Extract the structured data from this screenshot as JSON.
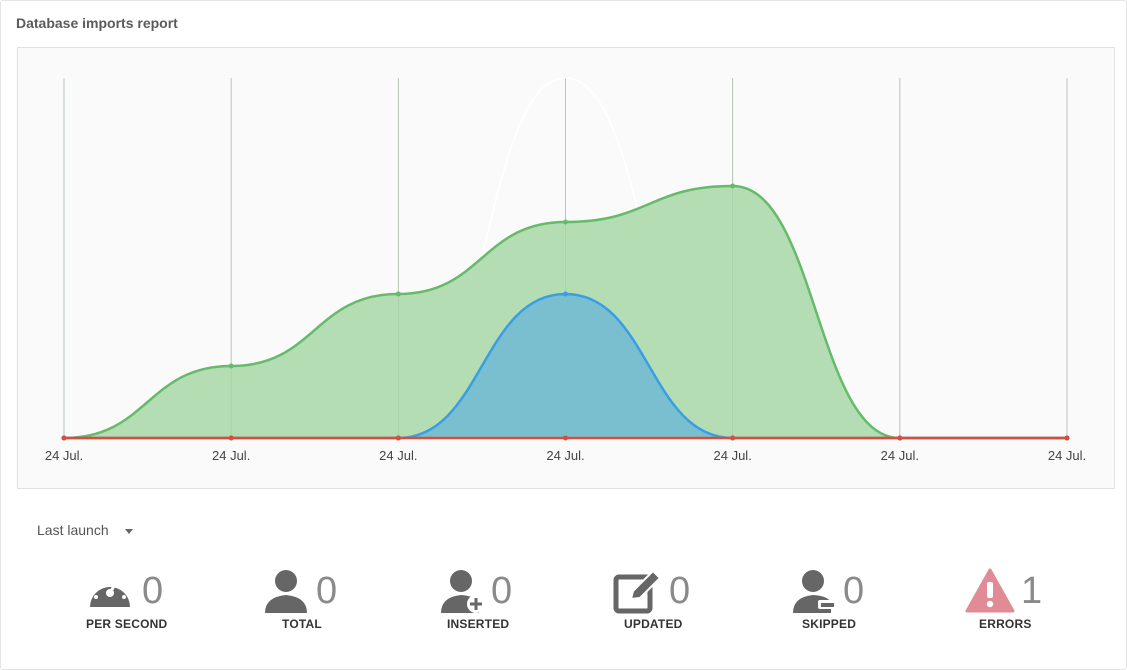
{
  "card": {
    "title": "Database imports report"
  },
  "chart_data": {
    "type": "area",
    "x": [
      "24 Jul.",
      "24 Jul.",
      "24 Jul.",
      "24 Jul.",
      "24 Jul.",
      "24 Jul.",
      "24 Jul."
    ],
    "series": [
      {
        "values": [
          0,
          2,
          4,
          6,
          7,
          0,
          0
        ],
        "color": "#66bb6a",
        "fill": "#b4ddb4"
      },
      {
        "values": [
          0,
          0,
          0,
          4,
          0,
          0,
          0
        ],
        "color": "#3a9ee4",
        "fill": "#79bfd0"
      },
      {
        "values": [
          0,
          0,
          0,
          0,
          0,
          0,
          0
        ],
        "color": "#dd4b39"
      },
      {
        "values": [
          0,
          0,
          0,
          10,
          0,
          0,
          0
        ],
        "color": "#ffffff"
      }
    ],
    "ylim": [
      0,
      10
    ],
    "grid": true
  },
  "filter": {
    "label": "Last launch"
  },
  "stats": [
    {
      "icon": "speedometer-icon",
      "value": "0",
      "label": "PER SECOND",
      "color": "#666666"
    },
    {
      "icon": "user-icon",
      "value": "0",
      "label": "TOTAL",
      "color": "#666666"
    },
    {
      "icon": "user-add-icon",
      "value": "0",
      "label": "INSERTED",
      "color": "#666666"
    },
    {
      "icon": "edit-icon",
      "value": "0",
      "label": "UPDATED",
      "color": "#666666"
    },
    {
      "icon": "user-skip-icon",
      "value": "0",
      "label": "SKIPPED",
      "color": "#666666"
    },
    {
      "icon": "warning-icon",
      "value": "1",
      "label": "ERRORS",
      "color": "#e08b96"
    }
  ]
}
